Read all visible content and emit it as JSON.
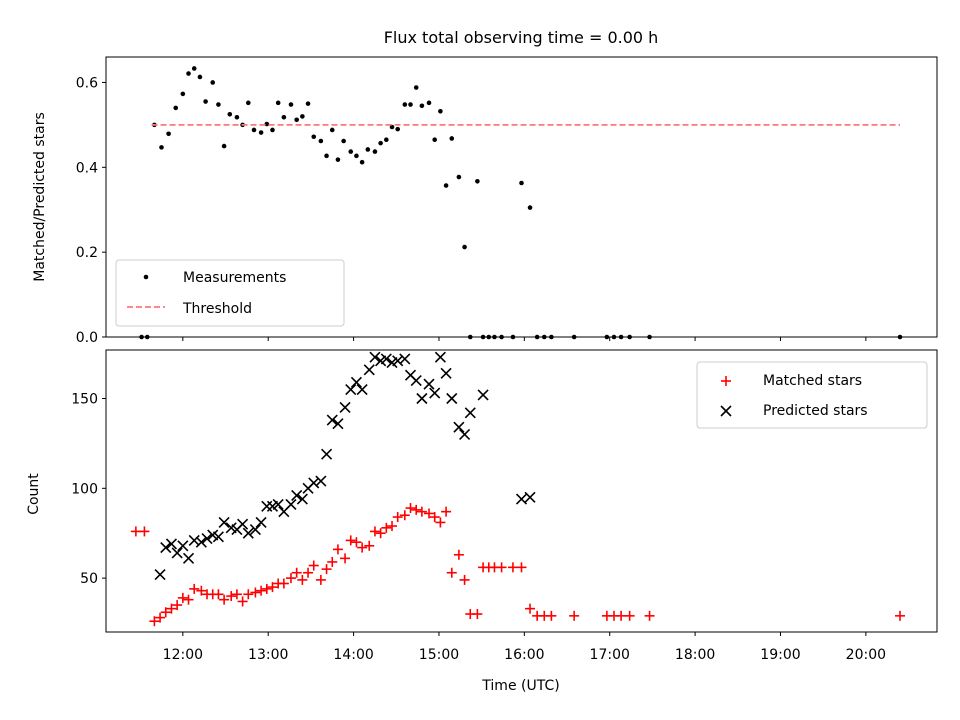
{
  "chart_data": [
    {
      "type": "scatter",
      "title": "Flux total observing time = 0.00 h",
      "xlabel": "",
      "ylabel": "Matched/Predicted stars",
      "xlim": [
        "11:06",
        "20:50"
      ],
      "ylim": [
        0.0,
        0.66
      ],
      "yticks": [
        0.0,
        0.2,
        0.4,
        0.6
      ],
      "ytick_labels": [
        "0.0",
        "0.2",
        "0.4",
        "0.6"
      ],
      "grid": false,
      "legend": {
        "placement": "lower-left",
        "entries": [
          "Measurements",
          "Threshold"
        ]
      },
      "series": [
        {
          "name": "Measurements",
          "marker": "dot",
          "color": "#000000",
          "points": [
            [
              "11:31",
              0.0
            ],
            [
              "11:35",
              0.0
            ],
            [
              "11:40",
              0.5
            ],
            [
              "11:45",
              0.447
            ],
            [
              "11:50",
              0.479
            ],
            [
              "11:55",
              0.54
            ],
            [
              "12:00",
              0.573
            ],
            [
              "12:04",
              0.621
            ],
            [
              "12:08",
              0.633
            ],
            [
              "12:12",
              0.613
            ],
            [
              "12:16",
              0.555
            ],
            [
              "12:21",
              0.6
            ],
            [
              "12:25",
              0.548
            ],
            [
              "12:29",
              0.45
            ],
            [
              "12:33",
              0.525
            ],
            [
              "12:38",
              0.518
            ],
            [
              "12:42",
              0.5
            ],
            [
              "12:46",
              0.552
            ],
            [
              "12:50",
              0.488
            ],
            [
              "12:55",
              0.482
            ],
            [
              "12:59",
              0.502
            ],
            [
              "13:03",
              0.488
            ],
            [
              "13:07",
              0.552
            ],
            [
              "13:11",
              0.518
            ],
            [
              "13:16",
              0.548
            ],
            [
              "13:20",
              0.512
            ],
            [
              "13:24",
              0.52
            ],
            [
              "13:28",
              0.55
            ],
            [
              "13:32",
              0.472
            ],
            [
              "13:37",
              0.462
            ],
            [
              "13:41",
              0.427
            ],
            [
              "13:45",
              0.488
            ],
            [
              "13:49",
              0.418
            ],
            [
              "13:53",
              0.462
            ],
            [
              "13:58",
              0.437
            ],
            [
              "14:02",
              0.427
            ],
            [
              "14:06",
              0.412
            ],
            [
              "14:10",
              0.442
            ],
            [
              "14:15",
              0.437
            ],
            [
              "14:19",
              0.457
            ],
            [
              "14:23",
              0.465
            ],
            [
              "14:27",
              0.495
            ],
            [
              "14:31",
              0.49
            ],
            [
              "14:36",
              0.548
            ],
            [
              "14:40",
              0.548
            ],
            [
              "14:44",
              0.588
            ],
            [
              "14:48",
              0.545
            ],
            [
              "14:53",
              0.552
            ],
            [
              "14:57",
              0.465
            ],
            [
              "15:01",
              0.532
            ],
            [
              "15:05",
              0.357
            ],
            [
              "15:09",
              0.468
            ],
            [
              "15:14",
              0.377
            ],
            [
              "15:18",
              0.212
            ],
            [
              "15:22",
              0.0
            ],
            [
              "15:27",
              0.367
            ],
            [
              "15:31",
              0.0
            ],
            [
              "15:35",
              0.0
            ],
            [
              "15:39",
              0.0
            ],
            [
              "15:44",
              0.0
            ],
            [
              "15:52",
              0.0
            ],
            [
              "15:58",
              0.363
            ],
            [
              "16:04",
              0.305
            ],
            [
              "16:09",
              0.0
            ],
            [
              "16:14",
              0.0
            ],
            [
              "16:19",
              0.0
            ],
            [
              "16:35",
              0.0
            ],
            [
              "16:58",
              0.0
            ],
            [
              "17:03",
              0.0
            ],
            [
              "17:08",
              0.0
            ],
            [
              "17:14",
              0.0
            ],
            [
              "17:28",
              0.0
            ],
            [
              "20:24",
              0.0
            ]
          ]
        },
        {
          "name": "Threshold",
          "style": "dashed",
          "color": "#ff7777",
          "points": [
            [
              "11:38",
              0.5
            ],
            [
              "20:24",
              0.5
            ]
          ]
        }
      ]
    },
    {
      "type": "scatter",
      "title": "",
      "xlabel": "Time (UTC)",
      "ylabel": "Count",
      "xlim": [
        "11:06",
        "20:50"
      ],
      "ylim": [
        20,
        177
      ],
      "yticks": [
        50,
        100,
        150
      ],
      "ytick_labels": [
        "50",
        "100",
        "150"
      ],
      "xticks": [
        "12:00",
        "13:00",
        "14:00",
        "15:00",
        "16:00",
        "17:00",
        "18:00",
        "19:00",
        "20:00"
      ],
      "grid": false,
      "legend": {
        "placement": "top-right",
        "entries": [
          "Matched stars",
          "Predicted stars"
        ]
      },
      "series": [
        {
          "name": "Matched stars",
          "marker": "plus",
          "color": "#ff0000",
          "points": [
            [
              "11:27",
              76
            ],
            [
              "11:33",
              76
            ],
            [
              "11:40",
              26
            ],
            [
              "11:44",
              28
            ],
            [
              "11:48",
              31
            ],
            [
              "11:52",
              33
            ],
            [
              "11:56",
              35
            ],
            [
              "12:00",
              39
            ],
            [
              "12:04",
              38
            ],
            [
              "12:08",
              44
            ],
            [
              "12:13",
              43
            ],
            [
              "12:17",
              41
            ],
            [
              "12:21",
              41
            ],
            [
              "12:25",
              41
            ],
            [
              "12:29",
              38
            ],
            [
              "12:34",
              40
            ],
            [
              "12:38",
              41
            ],
            [
              "12:42",
              37
            ],
            [
              "12:46",
              41
            ],
            [
              "12:51",
              42
            ],
            [
              "12:55",
              43
            ],
            [
              "12:59",
              44
            ],
            [
              "13:03",
              45
            ],
            [
              "13:07",
              47
            ],
            [
              "13:11",
              47
            ],
            [
              "13:16",
              50
            ],
            [
              "13:20",
              53
            ],
            [
              "13:24",
              49
            ],
            [
              "13:28",
              53
            ],
            [
              "13:32",
              57
            ],
            [
              "13:37",
              49
            ],
            [
              "13:41",
              55
            ],
            [
              "13:45",
              59
            ],
            [
              "13:49",
              66
            ],
            [
              "13:54",
              61
            ],
            [
              "13:58",
              71
            ],
            [
              "14:02",
              70
            ],
            [
              "14:06",
              67
            ],
            [
              "14:11",
              68
            ],
            [
              "14:15",
              76
            ],
            [
              "14:19",
              75
            ],
            [
              "14:23",
              78
            ],
            [
              "14:27",
              79
            ],
            [
              "14:31",
              84
            ],
            [
              "14:36",
              85
            ],
            [
              "14:40",
              89
            ],
            [
              "14:44",
              88
            ],
            [
              "14:48",
              87
            ],
            [
              "14:53",
              86
            ],
            [
              "14:57",
              84
            ],
            [
              "15:01",
              81
            ],
            [
              "15:05",
              87
            ],
            [
              "15:09",
              53
            ],
            [
              "15:14",
              63
            ],
            [
              "15:18",
              49
            ],
            [
              "15:22",
              30
            ],
            [
              "15:27",
              30
            ],
            [
              "15:31",
              56
            ],
            [
              "15:35",
              56
            ],
            [
              "15:39",
              56
            ],
            [
              "15:44",
              56
            ],
            [
              "15:52",
              56
            ],
            [
              "15:58",
              56
            ],
            [
              "16:04",
              33
            ],
            [
              "16:09",
              29
            ],
            [
              "16:14",
              29
            ],
            [
              "16:19",
              29
            ],
            [
              "16:35",
              29
            ],
            [
              "16:58",
              29
            ],
            [
              "17:03",
              29
            ],
            [
              "17:08",
              29
            ],
            [
              "17:14",
              29
            ],
            [
              "17:28",
              29
            ],
            [
              "20:24",
              29
            ]
          ]
        },
        {
          "name": "Predicted stars",
          "marker": "x",
          "color": "#000000",
          "points": [
            [
              "11:44",
              52
            ],
            [
              "11:48",
              67
            ],
            [
              "11:52",
              69
            ],
            [
              "11:56",
              64
            ],
            [
              "12:00",
              68
            ],
            [
              "12:04",
              61
            ],
            [
              "12:08",
              71
            ],
            [
              "12:13",
              70
            ],
            [
              "12:17",
              72
            ],
            [
              "12:21",
              74
            ],
            [
              "12:25",
              73
            ],
            [
              "12:29",
              81
            ],
            [
              "12:34",
              78
            ],
            [
              "12:38",
              77
            ],
            [
              "12:42",
              80
            ],
            [
              "12:46",
              75
            ],
            [
              "12:51",
              77
            ],
            [
              "12:55",
              81
            ],
            [
              "12:59",
              90
            ],
            [
              "13:03",
              90
            ],
            [
              "13:07",
              91
            ],
            [
              "13:11",
              87
            ],
            [
              "13:16",
              91
            ],
            [
              "13:20",
              96
            ],
            [
              "13:24",
              94
            ],
            [
              "13:28",
              100
            ],
            [
              "13:32",
              103
            ],
            [
              "13:37",
              104
            ],
            [
              "13:41",
              119
            ],
            [
              "13:45",
              138
            ],
            [
              "13:49",
              136
            ],
            [
              "13:54",
              145
            ],
            [
              "13:58",
              155
            ],
            [
              "14:02",
              159
            ],
            [
              "14:06",
              155
            ],
            [
              "14:11",
              166
            ],
            [
              "14:15",
              173
            ],
            [
              "14:19",
              171
            ],
            [
              "14:23",
              172
            ],
            [
              "14:27",
              170
            ],
            [
              "14:31",
              171
            ],
            [
              "14:36",
              172
            ],
            [
              "14:40",
              163
            ],
            [
              "14:44",
              160
            ],
            [
              "14:48",
              150
            ],
            [
              "14:53",
              158
            ],
            [
              "14:57",
              153
            ],
            [
              "15:01",
              173
            ],
            [
              "15:05",
              164
            ],
            [
              "15:09",
              150
            ],
            [
              "15:14",
              134
            ],
            [
              "15:18",
              130
            ],
            [
              "15:22",
              142
            ],
            [
              "15:31",
              152
            ],
            [
              "15:58",
              94
            ],
            [
              "16:04",
              95
            ]
          ]
        }
      ]
    }
  ]
}
